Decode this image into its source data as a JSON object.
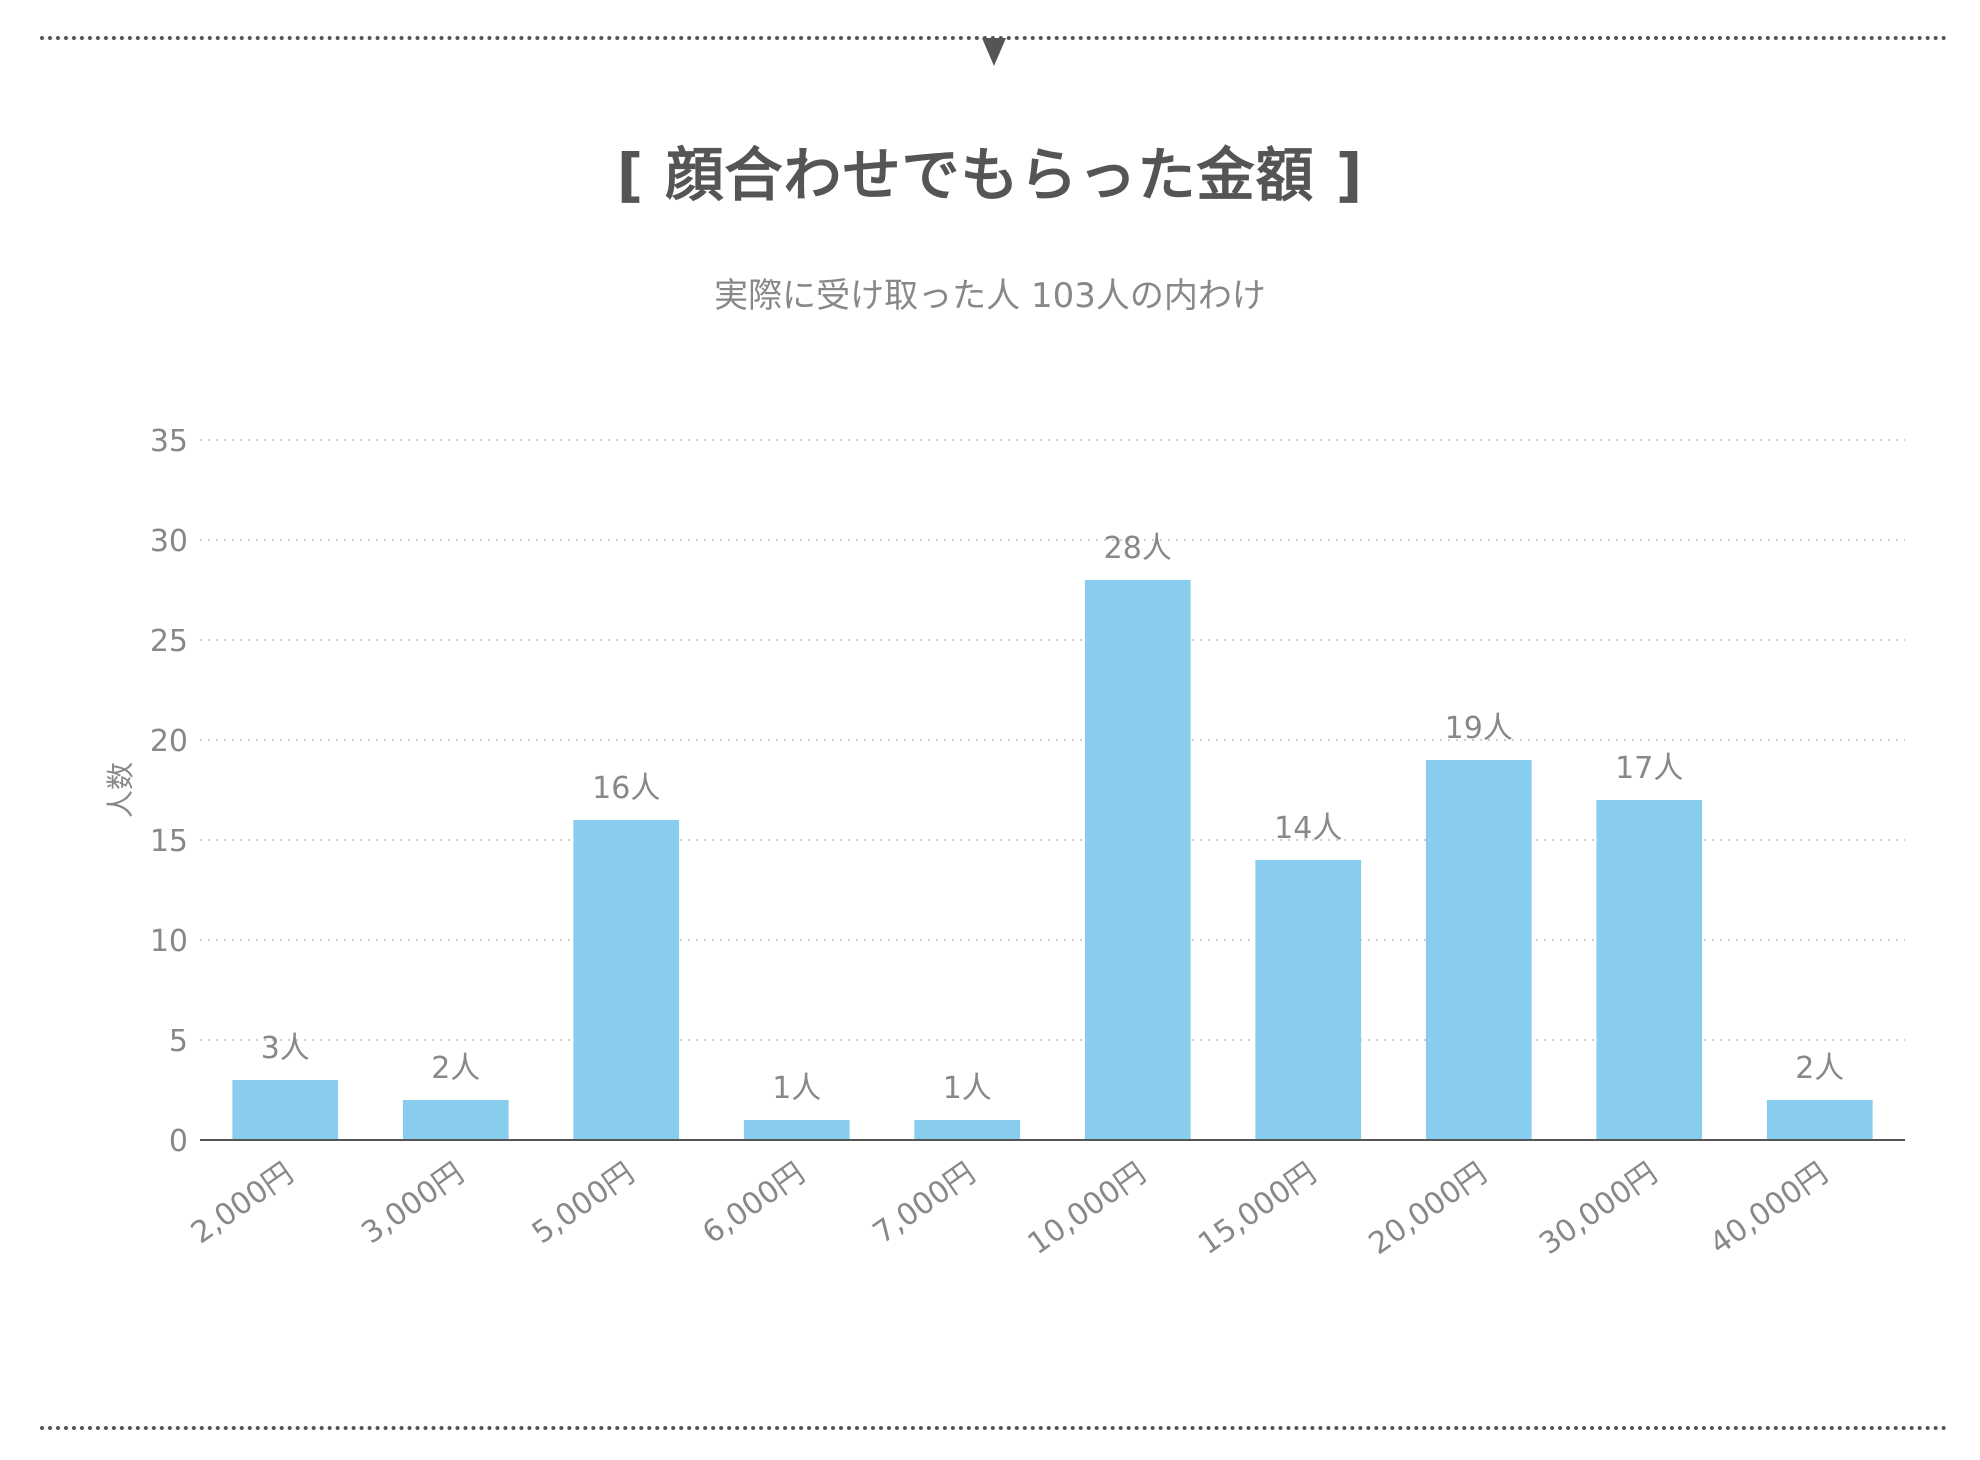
{
  "header": {
    "title": "[ 顔合わせでもらった金額 ]",
    "subtitle": "実際に受け取った人 103人の内わけ"
  },
  "colors": {
    "bar": "#88CCEE",
    "text": "#555555",
    "axis_text": "#888888",
    "grid": "#CCCCCC"
  },
  "chart_data": {
    "type": "bar",
    "categories": [
      "2,000円",
      "3,000円",
      "5,000円",
      "6,000円",
      "7,000円",
      "10,000円",
      "15,000円",
      "20,000円",
      "30,000円",
      "40,000円"
    ],
    "values": [
      3,
      2,
      16,
      1,
      1,
      28,
      14,
      19,
      17,
      2
    ],
    "data_labels": [
      "3人",
      "2人",
      "16人",
      "1人",
      "1人",
      "28人",
      "14人",
      "19人",
      "17人",
      "2人"
    ],
    "title": "[ 顔合わせでもらった金額 ]",
    "subtitle": "実際に受け取った人 103人の内わけ",
    "xlabel": "",
    "ylabel": "人数",
    "ylim": [
      0,
      35
    ],
    "yticks": [
      "0",
      "5",
      "10",
      "15",
      "20",
      "25",
      "30",
      "35"
    ],
    "grid": true,
    "legend": "none"
  }
}
